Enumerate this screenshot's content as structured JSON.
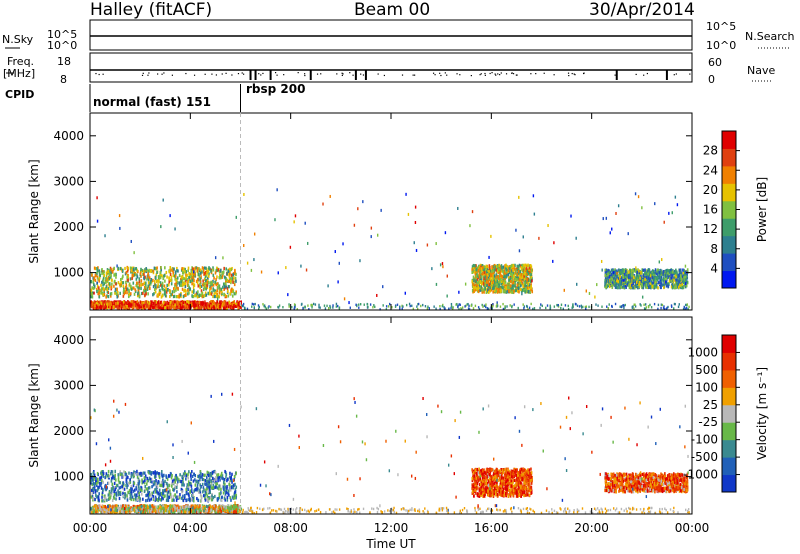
{
  "header": {
    "station": "Halley (fitACF)",
    "beam": "Beam 00",
    "date": "30/Apr/2014"
  },
  "strip_labels": {
    "nsky": "N.Sky",
    "nsky_tick_top": "10^5",
    "nsky_tick_bottom": "10^0",
    "nsearch": "N.Search",
    "nsearch_tick_top": "10^5",
    "nsearch_tick_bottom": "10^0",
    "freq_line1": "Freq.",
    "freq_line2": "[MHz]",
    "freq_tick_top": "18",
    "freq_tick_bottom": "8",
    "nave": "Nave",
    "nave_tick_top": "60",
    "nave_tick_bottom": "0",
    "cpid": "CPID"
  },
  "cpid_segments": [
    {
      "label": "normal (fast) 151",
      "start_hour": 0
    },
    {
      "label": "rbsp 200",
      "start_hour": 6.0
    }
  ],
  "colorbars": {
    "power": {
      "title": "Power [dB]",
      "ticks": [
        "28",
        "24",
        "20",
        "16",
        "12",
        "8",
        "4"
      ]
    },
    "velocity": {
      "title": "Velocity [m s⁻¹]",
      "ticks": [
        "1000",
        "500",
        "100",
        "25",
        "-25",
        "-100",
        "-500",
        "-1000"
      ]
    }
  },
  "colors": {
    "power_scale": [
      "#0018f0",
      "#1f4fc0",
      "#2d7f8f",
      "#3e9d6a",
      "#80c040",
      "#e6c200",
      "#f08000",
      "#e04010",
      "#e00000"
    ],
    "velocity_scale": [
      "#1038c8",
      "#2060b8",
      "#3a8a90",
      "#68b848",
      "#b8b8b8",
      "#f0a000",
      "#f06000",
      "#e83000",
      "#e00000"
    ]
  },
  "chart_data": [
    {
      "type": "heatmap",
      "name": "power",
      "ylabel": "Slant Range [km]",
      "xlabel": "Time UT",
      "x_ticks": [
        "00:00",
        "04:00",
        "08:00",
        "12:00",
        "16:00",
        "20:00",
        "00:00"
      ],
      "y_ticks": [
        "1000",
        "2000",
        "3000",
        "4000"
      ],
      "xlim_hours": [
        0,
        24
      ],
      "ylim_km": [
        180,
        4500
      ],
      "colorbar": "Power [dB]",
      "colorbar_range_db": [
        0,
        32
      ],
      "scatter_regions": [
        {
          "t_start": 0.0,
          "t_end": 5.8,
          "range_start": 500,
          "range_end": 1150,
          "level": 0.55
        },
        {
          "t_start": 0.0,
          "t_end": 6.0,
          "range_start": 250,
          "range_end": 400,
          "level": 0.85
        },
        {
          "t_start": 15.2,
          "t_end": 17.6,
          "range_start": 600,
          "range_end": 1200,
          "level": 0.55
        },
        {
          "t_start": 20.5,
          "t_end": 23.8,
          "range_start": 700,
          "range_end": 1100,
          "level": 0.35
        }
      ]
    },
    {
      "type": "heatmap",
      "name": "velocity",
      "ylabel": "Slant Range [km]",
      "xlabel": "Time UT",
      "x_ticks": [
        "00:00",
        "04:00",
        "08:00",
        "12:00",
        "16:00",
        "20:00",
        "00:00"
      ],
      "y_ticks": [
        "1000",
        "2000",
        "3000",
        "4000"
      ],
      "xlim_hours": [
        0,
        24
      ],
      "ylim_km": [
        180,
        4500
      ],
      "colorbar": "Velocity [m s⁻¹]",
      "colorbar_range_ms": [
        -1200,
        1200
      ],
      "scatter_regions": [
        {
          "t_start": 0.0,
          "t_end": 5.8,
          "range_start": 500,
          "range_end": 1150,
          "level": 0.25
        },
        {
          "t_start": 0.0,
          "t_end": 6.0,
          "range_start": 250,
          "range_end": 400,
          "level": 0.55
        },
        {
          "t_start": 15.2,
          "t_end": 17.6,
          "range_start": 600,
          "range_end": 1200,
          "level": 0.8
        },
        {
          "t_start": 20.5,
          "t_end": 23.8,
          "range_start": 700,
          "range_end": 1100,
          "level": 0.75
        }
      ]
    }
  ]
}
